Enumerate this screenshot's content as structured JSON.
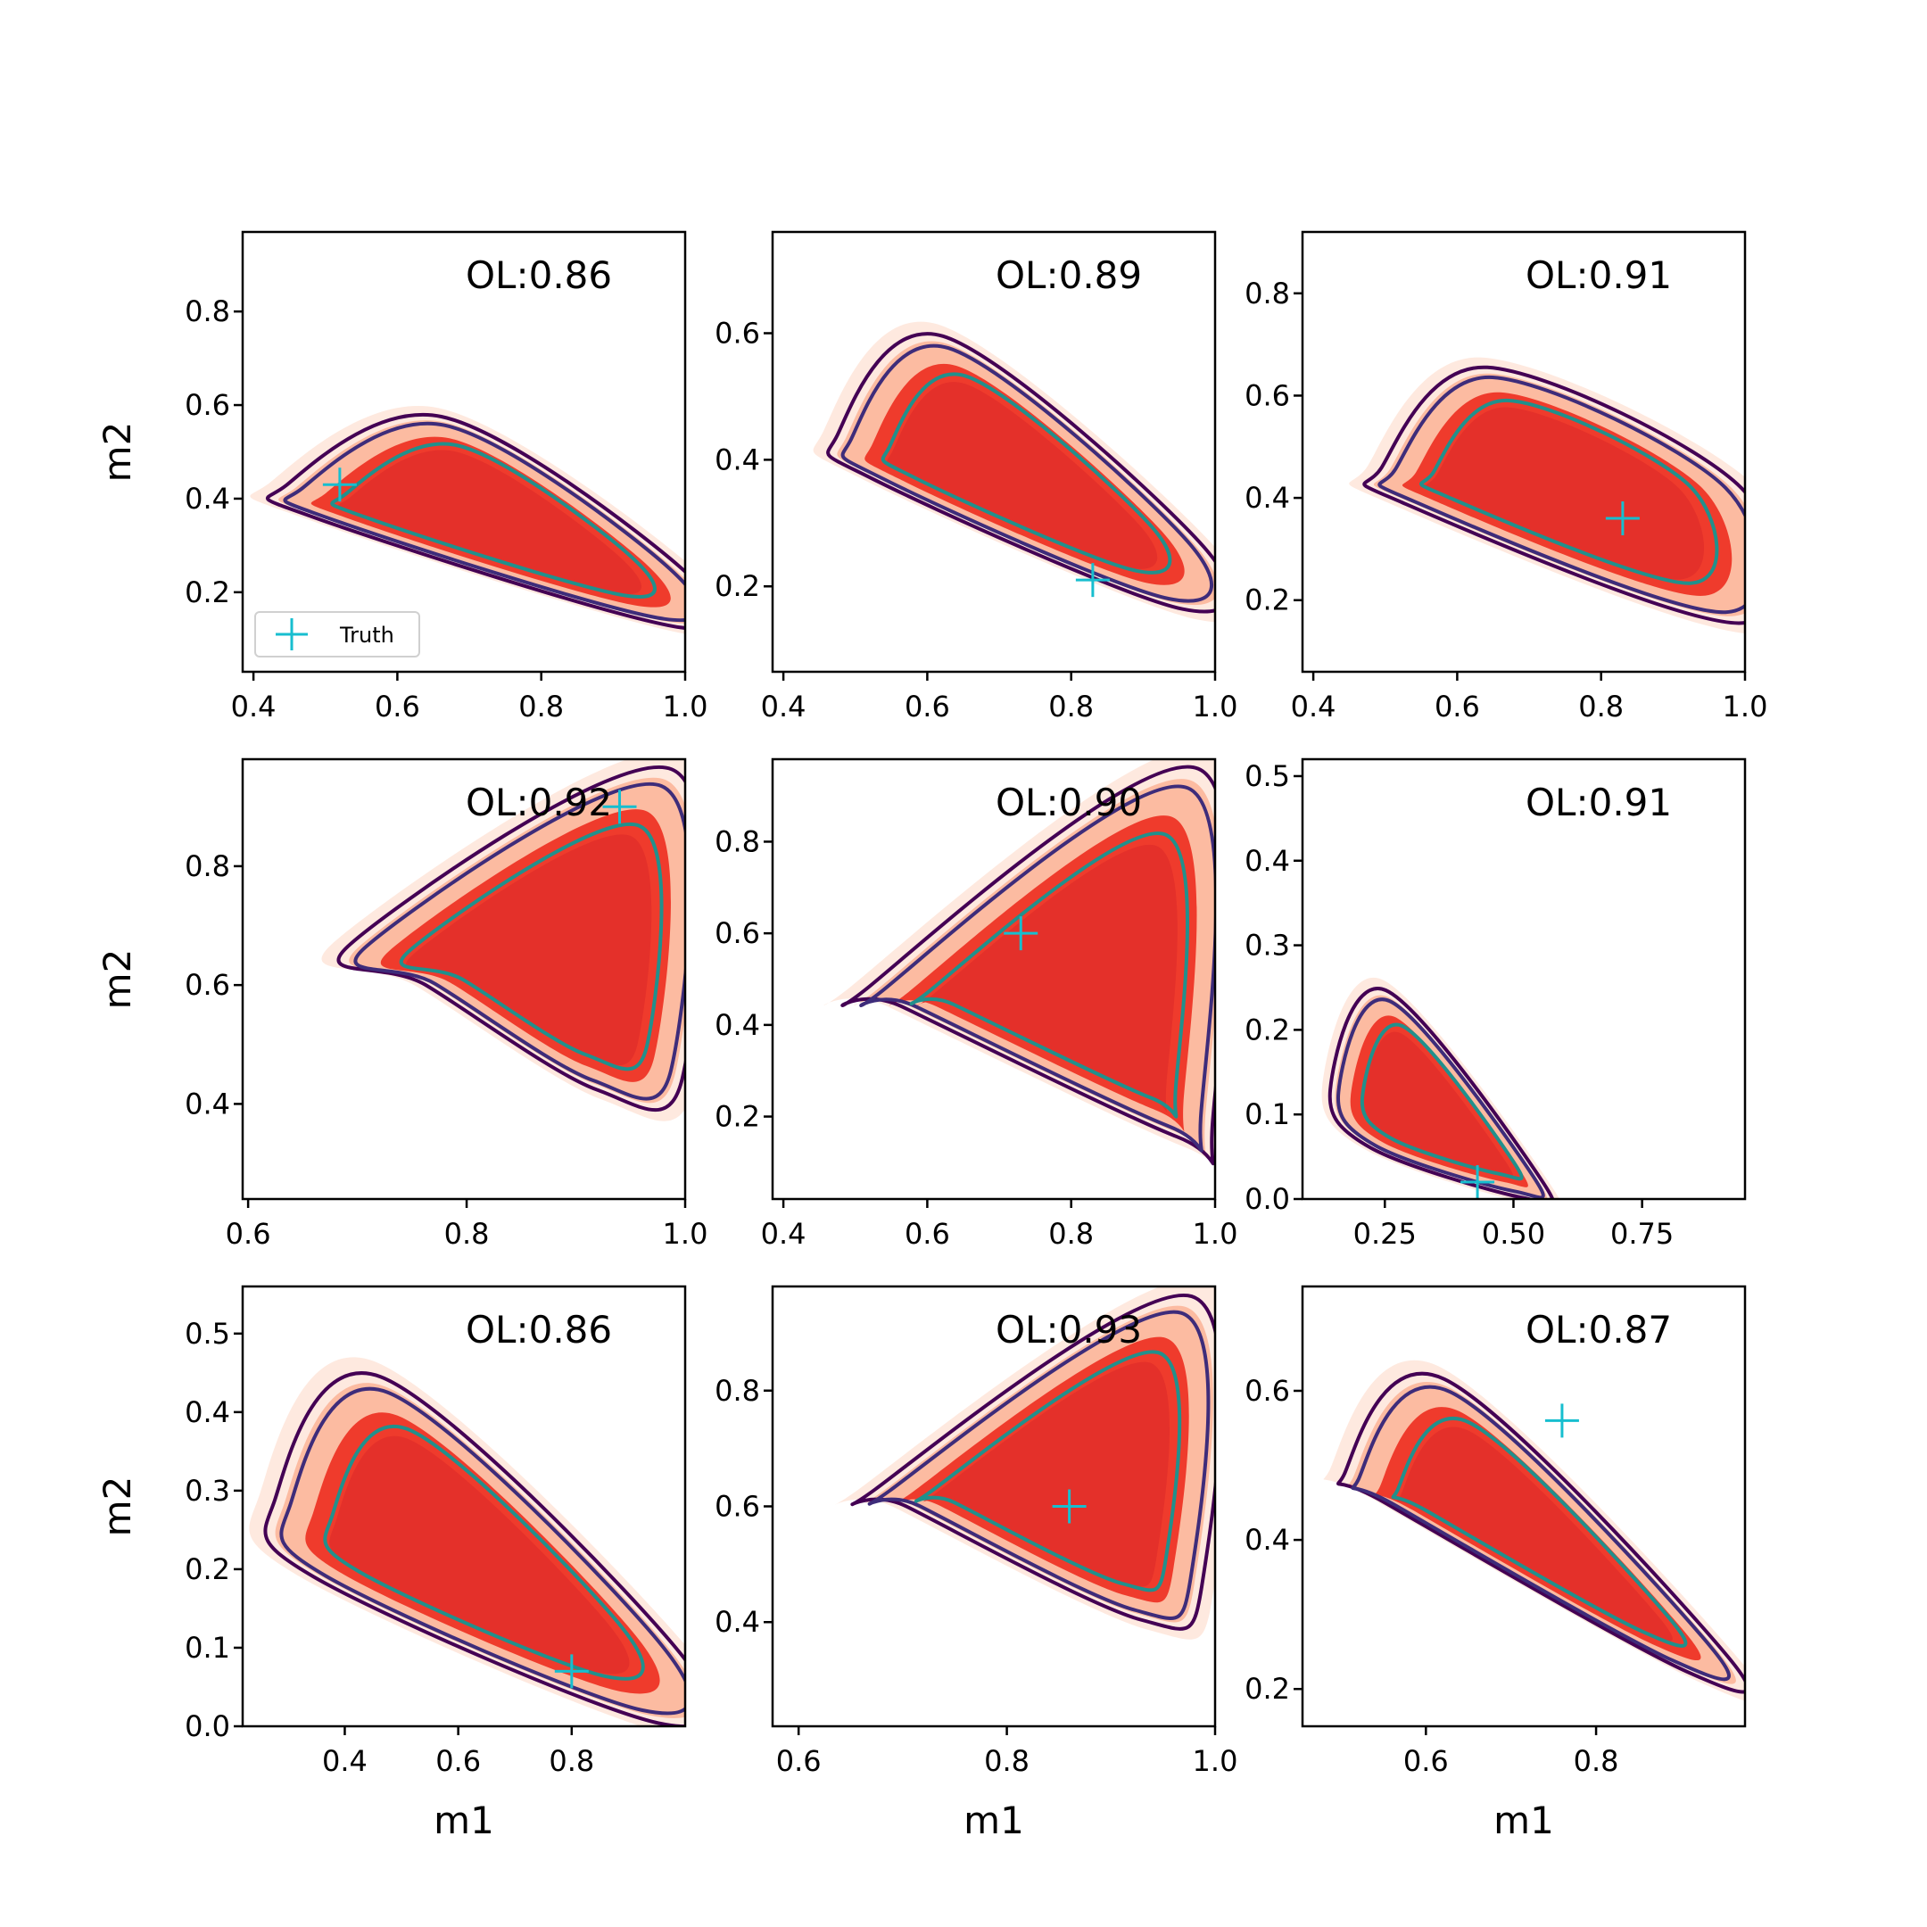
{
  "colors": {
    "fill_levels": [
      "#fee5d9",
      "#fcbba1",
      "#ef3b2c",
      "#e4302a"
    ],
    "contour_lines": [
      "#440154",
      "#3e2c7a",
      "#21908c"
    ],
    "truth_marker": "#17becf",
    "frame": "#000000"
  },
  "legend": {
    "label": "Truth",
    "icon": "plus-marker"
  },
  "chart_data": [
    {
      "type": "contour",
      "panel": [
        0,
        0
      ],
      "annotation": "OL:0.86",
      "xlim": [
        0.385,
        1.0
      ],
      "ylim": [
        0.03,
        0.97
      ],
      "xticks": [
        0.4,
        0.6,
        0.8,
        1.0
      ],
      "xticklabels": [
        "0.4",
        "0.6",
        "0.8",
        "1.0"
      ],
      "yticks": [
        0.2,
        0.4,
        0.6,
        0.8
      ],
      "yticklabels": [
        "0.2",
        "0.4",
        "0.6",
        "0.8"
      ],
      "ylabel": "m2",
      "xlabel": "",
      "truth": [
        0.52,
        0.43
      ],
      "legend": true,
      "shape": [
        [
          0.44,
          0.43
        ],
        [
          0.66,
          0.58
        ],
        [
          1.0,
          0.25
        ],
        [
          1.0,
          0.12
        ],
        [
          0.48,
          0.36
        ]
      ]
    },
    {
      "type": "contour",
      "panel": [
        0,
        1
      ],
      "annotation": "OL:0.89",
      "xlim": [
        0.385,
        1.0
      ],
      "ylim": [
        0.065,
        0.76
      ],
      "xticks": [
        0.4,
        0.6,
        0.8,
        1.0
      ],
      "xticklabels": [
        "0.4",
        "0.6",
        "0.8",
        "1.0"
      ],
      "yticks": [
        0.2,
        0.4,
        0.6
      ],
      "yticklabels": [
        "0.2",
        "0.4",
        "0.6"
      ],
      "ylabel": "",
      "xlabel": "",
      "truth": [
        0.83,
        0.21
      ],
      "legend": false,
      "shape": [
        [
          0.47,
          0.44
        ],
        [
          0.62,
          0.6
        ],
        [
          0.99,
          0.26
        ],
        [
          0.96,
          0.16
        ],
        [
          0.52,
          0.37
        ]
      ]
    },
    {
      "type": "contour",
      "panel": [
        0,
        2
      ],
      "annotation": "OL:0.91",
      "xlim": [
        0.385,
        1.0
      ],
      "ylim": [
        0.06,
        0.92
      ],
      "xticks": [
        0.4,
        0.6,
        0.8,
        1.0
      ],
      "xticklabels": [
        "0.4",
        "0.6",
        "0.8",
        "1.0"
      ],
      "yticks": [
        0.2,
        0.4,
        0.6,
        0.8
      ],
      "yticklabels": [
        "0.2",
        "0.4",
        "0.6",
        "0.8"
      ],
      "ylabel": "",
      "xlabel": "",
      "truth": [
        0.83,
        0.36
      ],
      "legend": false,
      "shape": [
        [
          0.49,
          0.46
        ],
        [
          0.64,
          0.66
        ],
        [
          1.0,
          0.42
        ],
        [
          1.0,
          0.15
        ],
        [
          0.52,
          0.39
        ]
      ]
    },
    {
      "type": "contour",
      "panel": [
        1,
        0
      ],
      "annotation": "OL:0.92",
      "xlim": [
        0.595,
        1.0
      ],
      "ylim": [
        0.24,
        0.98
      ],
      "xticks": [
        0.6,
        0.8,
        1.0
      ],
      "xticklabels": [
        "0.6",
        "0.8",
        "1.0"
      ],
      "yticks": [
        0.4,
        0.6,
        0.8
      ],
      "yticklabels": [
        "0.4",
        "0.6",
        "0.8"
      ],
      "ylabel": "m2",
      "xlabel": "",
      "truth": [
        0.94,
        0.9
      ],
      "legend": false,
      "shape": [
        [
          0.69,
          0.67
        ],
        [
          0.99,
          0.97
        ],
        [
          1.0,
          0.44
        ],
        [
          0.92,
          0.42
        ],
        [
          0.76,
          0.6
        ]
      ]
    },
    {
      "type": "contour",
      "panel": [
        1,
        1
      ],
      "annotation": "OL:0.90",
      "xlim": [
        0.385,
        1.0
      ],
      "ylim": [
        0.02,
        0.98
      ],
      "xticks": [
        0.4,
        0.6,
        0.8,
        1.0
      ],
      "xticklabels": [
        "0.4",
        "0.6",
        "0.8",
        "1.0"
      ],
      "yticks": [
        0.2,
        0.4,
        0.6,
        0.8
      ],
      "yticklabels": [
        "0.2",
        "0.4",
        "0.6",
        "0.8"
      ],
      "ylabel": "",
      "xlabel": "",
      "truth": [
        0.73,
        0.6
      ],
      "legend": false,
      "shape": [
        [
          0.51,
          0.48
        ],
        [
          0.98,
          0.97
        ],
        [
          1.0,
          0.17
        ],
        [
          0.95,
          0.15
        ],
        [
          0.56,
          0.44
        ]
      ]
    },
    {
      "type": "contour",
      "panel": [
        1,
        2
      ],
      "annotation": "OL:0.91",
      "xlim": [
        0.09,
        0.95
      ],
      "ylim": [
        0.0,
        0.52
      ],
      "xticks": [
        0.25,
        0.5,
        0.75
      ],
      "xticklabels": [
        "0.25",
        "0.50",
        "0.75"
      ],
      "yticks": [
        0.0,
        0.1,
        0.2,
        0.3,
        0.4,
        0.5
      ],
      "yticklabels": [
        "0.0",
        "0.1",
        "0.2",
        "0.3",
        "0.4",
        "0.5"
      ],
      "ylabel": "",
      "xlabel": "",
      "truth": [
        0.43,
        0.02
      ],
      "legend": false,
      "shape": [
        [
          0.14,
          0.13
        ],
        [
          0.25,
          0.25
        ],
        [
          0.56,
          0.02
        ],
        [
          0.52,
          0.0
        ],
        [
          0.22,
          0.06
        ]
      ]
    },
    {
      "type": "contour",
      "panel": [
        2,
        0
      ],
      "annotation": "OL:0.86",
      "xlim": [
        0.22,
        1.0
      ],
      "ylim": [
        0.0,
        0.56
      ],
      "xticks": [
        0.4,
        0.6,
        0.8
      ],
      "xticklabels": [
        "0.4",
        "0.6",
        "0.8"
      ],
      "yticks": [
        0.0,
        0.1,
        0.2,
        0.3,
        0.4,
        0.5
      ],
      "yticklabels": [
        "0.0",
        "0.1",
        "0.2",
        "0.3",
        "0.4",
        "0.5"
      ],
      "ylabel": "m2",
      "xlabel": "m1",
      "truth": [
        0.8,
        0.07
      ],
      "legend": false,
      "shape": [
        [
          0.27,
          0.29
        ],
        [
          0.46,
          0.45
        ],
        [
          1.0,
          0.09
        ],
        [
          0.96,
          0.0
        ],
        [
          0.34,
          0.19
        ]
      ]
    },
    {
      "type": "contour",
      "panel": [
        2,
        1
      ],
      "annotation": "OL:0.93",
      "xlim": [
        0.575,
        1.0
      ],
      "ylim": [
        0.22,
        0.98
      ],
      "xticks": [
        0.6,
        0.8,
        1.0
      ],
      "xticklabels": [
        "0.6",
        "0.8",
        "1.0"
      ],
      "yticks": [
        0.4,
        0.6,
        0.8
      ],
      "yticklabels": [
        "0.4",
        "0.6",
        "0.8"
      ],
      "ylabel": "",
      "xlabel": "m1",
      "truth": [
        0.86,
        0.6
      ],
      "legend": false,
      "shape": [
        [
          0.67,
          0.63
        ],
        [
          0.98,
          0.97
        ],
        [
          0.99,
          0.46
        ],
        [
          0.93,
          0.4
        ],
        [
          0.7,
          0.6
        ]
      ]
    },
    {
      "type": "contour",
      "panel": [
        2,
        2
      ],
      "annotation": "OL:0.87",
      "xlim": [
        0.455,
        0.975
      ],
      "ylim": [
        0.15,
        0.74
      ],
      "xticks": [
        0.6,
        0.8
      ],
      "xticklabels": [
        "0.6",
        "0.8"
      ],
      "yticks": [
        0.2,
        0.4,
        0.6
      ],
      "yticklabels": [
        "0.2",
        "0.4",
        "0.6"
      ],
      "ylabel": "",
      "xlabel": "m1",
      "truth": [
        0.76,
        0.56
      ],
      "legend": false,
      "shape": [
        [
          0.5,
          0.49
        ],
        [
          0.62,
          0.62
        ],
        [
          0.96,
          0.24
        ],
        [
          0.91,
          0.22
        ],
        [
          0.55,
          0.45
        ]
      ]
    }
  ]
}
